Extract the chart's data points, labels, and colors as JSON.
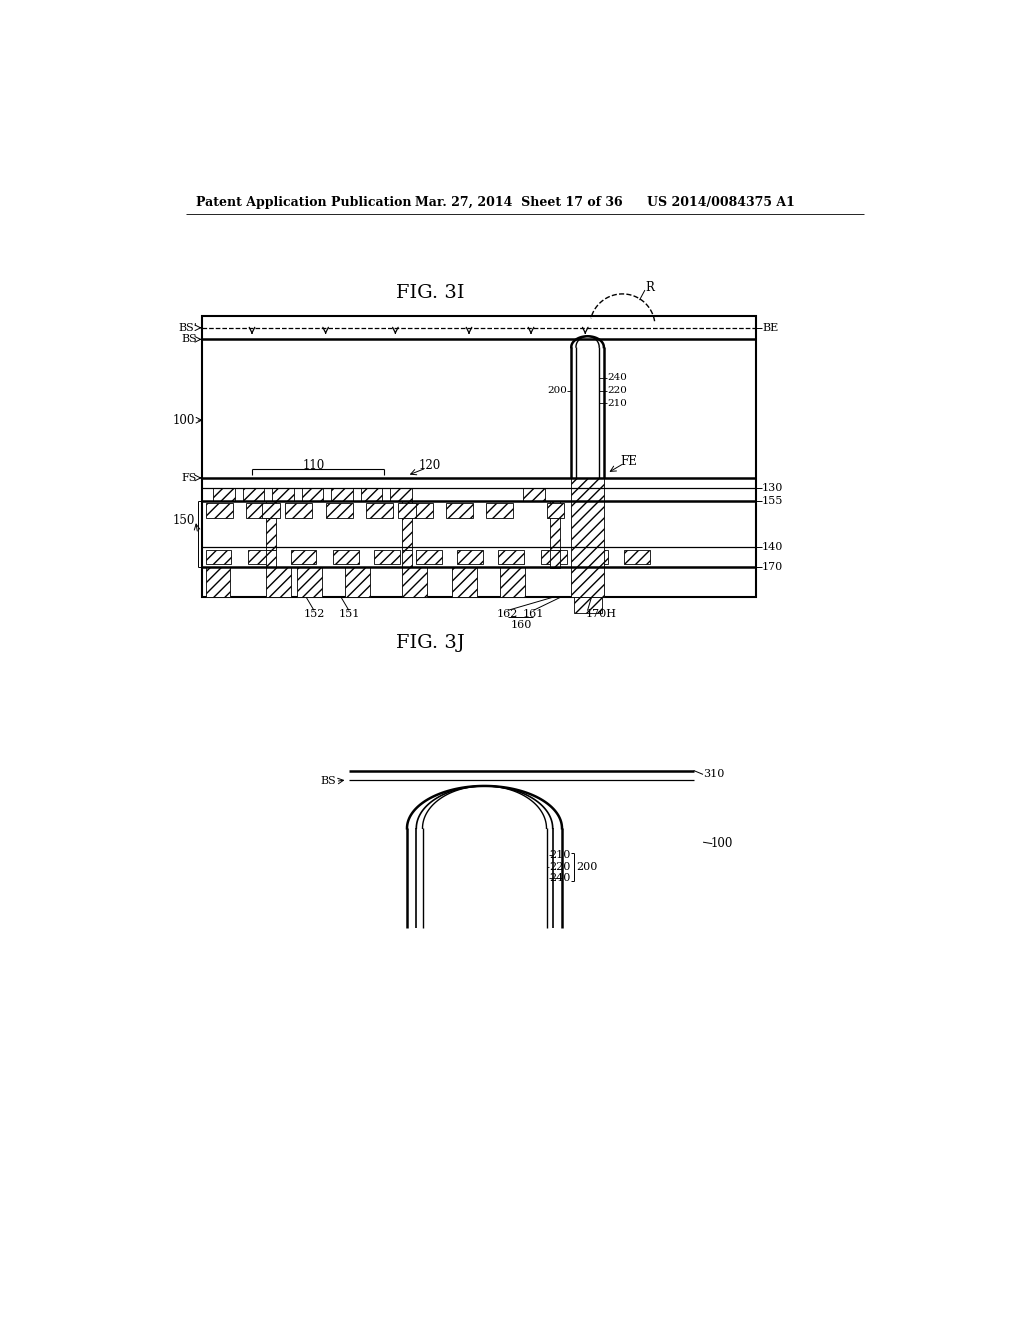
{
  "bg_color": "#ffffff",
  "header_text_left": "Patent Application Publication",
  "header_text_mid": "Mar. 27, 2014  Sheet 17 of 36",
  "header_text_right": "US 2014/0084375 A1",
  "fig3i_title": "FIG. 3I",
  "fig3j_title": "FIG. 3J"
}
